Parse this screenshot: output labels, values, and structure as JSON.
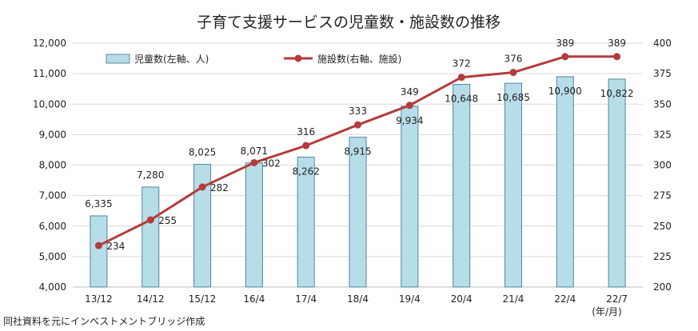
{
  "chart_data": {
    "type": "bar",
    "title": "子育て支援サービスの児童数・施設数の推移",
    "categories": [
      "13/12",
      "14/12",
      "15/12",
      "16/4",
      "17/4",
      "18/4",
      "19/4",
      "20/4",
      "21/4",
      "22/4",
      "22/7"
    ],
    "x_unit": "(年/月)",
    "series": [
      {
        "name": "児童数(左軸、人)",
        "type": "bar",
        "axis": "left",
        "values": [
          6335,
          7280,
          8025,
          8071,
          8262,
          8915,
          9934,
          10648,
          10685,
          10900,
          10822
        ],
        "labels": [
          "6,335",
          "7,280",
          "8,025",
          "8,071",
          "8,262",
          "8,915",
          "9,934",
          "10,648",
          "10,685",
          "10,900",
          "10,822"
        ],
        "color": "#b7dde8"
      },
      {
        "name": "施設数(右軸、施設)",
        "type": "line",
        "axis": "right",
        "values": [
          234,
          255,
          282,
          302,
          316,
          333,
          349,
          372,
          376,
          389,
          389
        ],
        "labels": [
          "234",
          "255",
          "282",
          "302",
          "316",
          "333",
          "349",
          "372",
          "376",
          "389",
          "389"
        ],
        "color": "#b43c3c"
      }
    ],
    "y_left": {
      "min": 4000,
      "max": 12000,
      "ticks": [
        "4,000",
        "5,000",
        "6,000",
        "7,000",
        "8,000",
        "9,000",
        "10,000",
        "11,000",
        "12,000"
      ]
    },
    "y_right": {
      "min": 200,
      "max": 400,
      "ticks": [
        "200",
        "225",
        "250",
        "275",
        "300",
        "325",
        "350",
        "375",
        "400"
      ]
    },
    "grid": true,
    "legend": "top-left",
    "source_note": "同社資料を元にインベストメントブリッジ作成"
  }
}
